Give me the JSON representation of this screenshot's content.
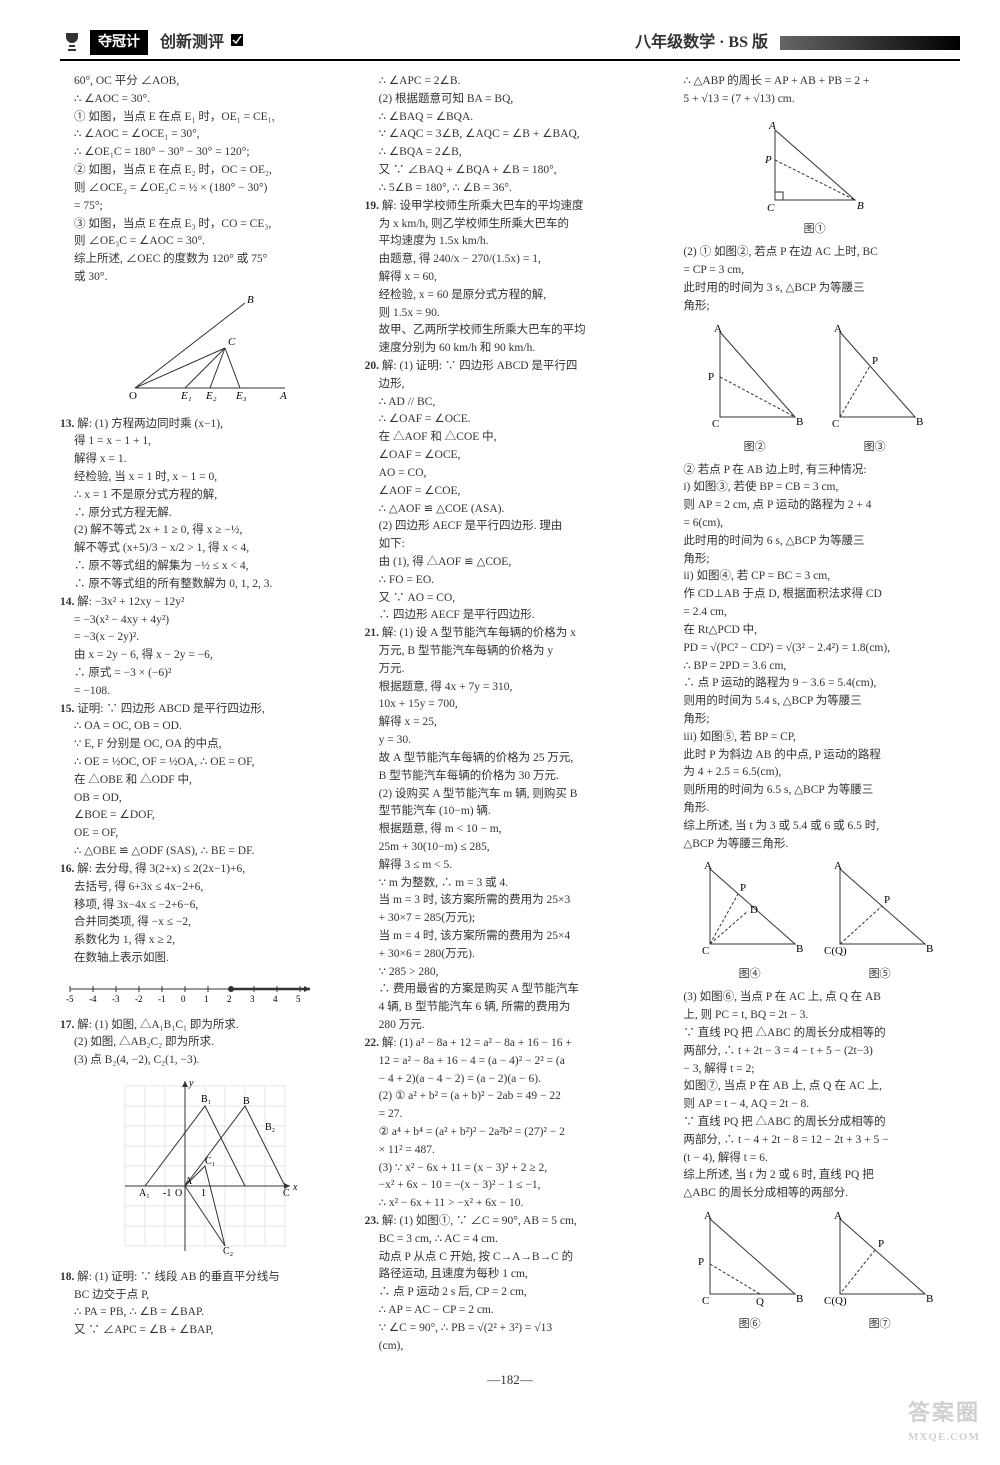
{
  "header": {
    "badge": "夺冠计",
    "subtitle": "创新测评",
    "right": "八年级数学 · BS 版"
  },
  "col1": {
    "lines": [
      "60°, OC 平分 ∠AOB,",
      "∴ ∠AOC = 30°.",
      "① 如图，当点 E 在点 E₁ 时，OE₁ = CE₁,",
      "∴ ∠AOC = ∠OCE₁ = 30°,",
      "∴ ∠OE₁C = 180° − 30° − 30° = 120°;",
      "② 如图，当点 E 在点 E₂ 时，OC = OE₂,",
      "则 ∠OCE₂ = ∠OE₂C = ½ × (180° − 30°)",
      "= 75°;",
      "③ 如图，当点 E 在点 E₃ 时，CO = CE₃,",
      "则 ∠OE₃C = ∠AOC = 30°.",
      "综上所述, ∠OEC 的度数为 120° 或 75°",
      "或 30°."
    ],
    "fig1_label": "",
    "q13": [
      "13. 解: (1) 方程两边同时乘 (x−1),",
      "得 1 = x − 1 + 1,",
      "解得 x = 1.",
      "经检验, 当 x = 1 时, x − 1 = 0,",
      "∴ x = 1 不是原分式方程的解,",
      "∴ 原分式方程无解.",
      "(2) 解不等式 2x + 1 ≥ 0, 得 x ≥ −½,",
      "解不等式 (x+5)/3 − x/2 > 1, 得 x < 4,",
      "∴ 原不等式组的解集为 −½ ≤ x < 4,",
      "∴ 原不等式组的所有整数解为 0, 1, 2, 3."
    ],
    "q14": [
      "14. 解: −3x² + 12xy − 12y²",
      "= −3(x² − 4xy + 4y²)",
      "= −3(x − 2y)².",
      "由 x = 2y − 6, 得 x − 2y = −6,",
      "∴ 原式 = −3 × (−6)²",
      "= −108."
    ],
    "q15": [
      "15. 证明: ∵ 四边形 ABCD 是平行四边形,",
      "∴ OA = OC, OB = OD.",
      "∵ E, F 分别是 OC, OA 的中点,",
      "∴ OE = ½OC, OF = ½OA, ∴ OE = OF,",
      "在 △OBE 和 △ODF 中,",
      "  OB = OD,",
      "  ∠BOE = ∠DOF,",
      "  OE = OF,",
      "∴ △OBE ≌ △ODF (SAS), ∴ BE = DF."
    ],
    "q16": [
      "16. 解: 去分母, 得 3(2+x) ≤ 2(2x−1)+6,",
      "去括号, 得 6+3x ≤ 4x−2+6,",
      "移项, 得 3x−4x ≤ −2+6−6,",
      "合并同类项, 得 −x ≤ −2,",
      "系数化为 1, 得 x ≥ 2,",
      "在数轴上表示如图."
    ],
    "q17": [
      "17. 解: (1) 如图, △A₁B₁C₁ 即为所求.",
      "(2) 如图, △AB₂C₂ 即为所求.",
      "(3) 点 B₂(4, −2), C₂(1, −3)."
    ],
    "q18": [
      "18. 解: (1) 证明: ∵ 线段 AB 的垂直平分线与",
      "BC 边交于点 P,",
      "∴ PA = PB, ∴ ∠B = ∠BAP.",
      "又 ∵ ∠APC = ∠B + ∠BAP,"
    ]
  },
  "col2": {
    "lines": [
      "∴ ∠APC = 2∠B.",
      "(2) 根据题意可知 BA = BQ,",
      "∴ ∠BAQ = ∠BQA.",
      "∵ ∠AQC = 3∠B, ∠AQC = ∠B + ∠BAQ,",
      "∴ ∠BQA = 2∠B,",
      "又 ∵ ∠BAQ + ∠BQA + ∠B = 180°,",
      "∴ 5∠B = 180°, ∴ ∠B = 36°."
    ],
    "q19": [
      "19. 解: 设甲学校师生所乘大巴车的平均速度",
      "为 x km/h, 则乙学校师生所乘大巴车的",
      "平均速度为 1.5x km/h.",
      "由题意, 得 240/x − 270/(1.5x) = 1,",
      "解得 x = 60,",
      "经检验, x = 60 是原分式方程的解,",
      "则 1.5x = 90.",
      "故甲、乙两所学校师生所乘大巴车的平均",
      "速度分别为 60 km/h 和 90 km/h."
    ],
    "q20": [
      "20. 解: (1) 证明: ∵ 四边形 ABCD 是平行四",
      "边形,",
      "∴ AD // BC,",
      "∴ ∠OAF = ∠OCE.",
      "在 △AOF 和 △COE 中,",
      "  ∠OAF = ∠OCE,",
      "  AO = CO,",
      "  ∠AOF = ∠COE,",
      "∴ △AOF ≌ △COE (ASA).",
      "(2) 四边形 AECF 是平行四边形. 理由",
      "如下:",
      "由 (1), 得 △AOF ≌ △COE,",
      "∴ FO = EO.",
      "又 ∵ AO = CO,",
      "∴ 四边形 AECF 是平行四边形."
    ],
    "q21": [
      "21. 解: (1) 设 A 型节能汽车每辆的价格为 x",
      "万元, B 型节能汽车每辆的价格为 y",
      "万元.",
      "根据题意, 得  4x + 7y = 310,",
      "             10x + 15y = 700,",
      "解得  x = 25,",
      "      y = 30.",
      "故 A 型节能汽车每辆的价格为 25 万元,",
      "B 型节能汽车每辆的价格为 30 万元.",
      "(2) 设购买 A 型节能汽车 m 辆, 则购买 B",
      "型节能汽车 (10−m) 辆.",
      "根据题意, 得  m < 10 − m,",
      "             25m + 30(10−m) ≤ 285,",
      "解得 3 ≤ m < 5.",
      "∵ m 为整数, ∴ m = 3 或 4.",
      "当 m = 3 时, 该方案所需的费用为 25×3",
      "+ 30×7 = 285(万元);",
      "当 m = 4 时, 该方案所需的费用为 25×4",
      "+ 30×6 = 280(万元).",
      "∵ 285 > 280,",
      "∴ 费用最省的方案是购买 A 型节能汽车",
      "4 辆, B 型节能汽车 6 辆, 所需的费用为",
      "280 万元."
    ],
    "q22": [
      "22. 解: (1) a² − 8a + 12 = a² − 8a + 16 − 16 +",
      "12 = a² − 8a + 16 − 4 = (a − 4)² − 2² = (a",
      "− 4 + 2)(a − 4 − 2) = (a − 2)(a − 6).",
      "(2) ① a² + b² = (a + b)² − 2ab = 49 − 22",
      "= 27.",
      "② a⁴ + b⁴ = (a² + b²)² − 2a²b² = (27)² − 2",
      "× 11² = 487.",
      "(3) ∵ x² − 6x + 11 = (x − 3)² + 2 ≥ 2,",
      "−x² + 6x − 10 = −(x − 3)² − 1 ≤ −1,",
      "∴ x² − 6x + 11 > −x² + 6x − 10."
    ],
    "q23": [
      "23. 解: (1) 如图①, ∵ ∠C = 90°, AB = 5 cm,",
      "BC = 3 cm, ∴ AC = 4 cm.",
      "动点 P 从点 C 开始, 按 C→A→B→C 的",
      "路径运动, 且速度为每秒 1 cm,",
      "∴ 点 P 运动 2 s 后, CP = 2 cm,",
      "∴ AP = AC − CP = 2 cm.",
      "∵ ∠C = 90°, ∴ PB = √(2² + 3²) = √13",
      "(cm),"
    ]
  },
  "col3": {
    "lines": [
      "∴ △ABP 的周长 = AP + AB + PB = 2 +",
      "5 + √13 = (7 + √13) cm."
    ],
    "fig1_label": "图①",
    "p2": [
      "(2) ① 如图②, 若点 P 在边 AC 上时, BC",
      "= CP = 3 cm,",
      "此时用的时间为 3 s, △BCP 为等腰三",
      "角形;"
    ],
    "fig23_labels": [
      "图②",
      "图③"
    ],
    "p3": [
      "② 若点 P 在 AB 边上时, 有三种情况:",
      "i) 如图③, 若使 BP = CB = 3 cm,",
      "则 AP = 2 cm, 点 P 运动的路程为 2 + 4",
      "= 6(cm),",
      "此时用的时间为 6 s, △BCP 为等腰三",
      "角形;",
      "ii) 如图④, 若 CP = BC = 3 cm,",
      "作 CD⊥AB 于点 D, 根据面积法求得 CD",
      "= 2.4 cm,",
      "在 Rt△PCD 中,",
      "PD = √(PC² − CD²) = √(3² − 2.4²) = 1.8(cm),",
      "∴ BP = 2PD = 3.6 cm,",
      "∴ 点 P 运动的路程为 9 − 3.6 = 5.4(cm),",
      "则用的时间为 5.4 s, △BCP 为等腰三",
      "角形;",
      "iii) 如图⑤, 若 BP = CP,",
      "此时 P 为斜边 AB 的中点, P 运动的路程",
      "为 4 + 2.5 = 6.5(cm),",
      "则所用的时间为 6.5 s, △BCP 为等腰三",
      "角形.",
      "综上所述, 当 t 为 3 或 5.4 或 6 或 6.5 时,",
      "△BCP 为等腰三角形."
    ],
    "fig45_labels": [
      "图④",
      "图⑤"
    ],
    "p4": [
      "(3) 如图⑥, 当点 P 在 AC 上, 点 Q 在 AB",
      "上, 则 PC = t, BQ = 2t − 3.",
      "∵ 直线 PQ 把 △ABC 的周长分成相等的",
      "两部分, ∴ t + 2t − 3 = 4 − t + 5 − (2t−3)",
      "− 3, 解得 t = 2;",
      "如图⑦, 当点 P 在 AB 上, 点 Q 在 AC 上,",
      "则 AP = t − 4, AQ = 2t − 8.",
      "∵ 直线 PQ 把 △ABC 的周长分成相等的",
      "两部分, ∴ t − 4 + 2t − 8 = 12 − 2t + 3 + 5 −",
      "(t − 4), 解得 t = 6.",
      "综上所述, 当 t 为 2 或 6 时, 直线 PQ 把",
      "△ABC 的周长分成相等的两部分."
    ],
    "fig67_labels": [
      "图⑥",
      "图⑦"
    ]
  },
  "footer": "—182—",
  "watermark": {
    "main": "答案圈",
    "sub": "MXQE.COM"
  },
  "numline": {
    "ticks": [
      -5,
      -4,
      -3,
      -2,
      -1,
      0,
      1,
      2,
      3,
      4,
      5
    ],
    "mark": 2
  },
  "svg": {
    "stroke": "#333",
    "accent": "#333",
    "font": "11"
  }
}
